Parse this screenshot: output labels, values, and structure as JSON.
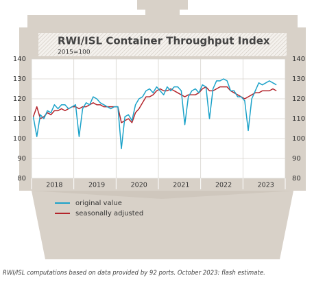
{
  "chart_data": {
    "type": "line",
    "title": "RWI/ISL Container Throughput Index",
    "subtitle": "2015=100",
    "categories": [
      null,
      null,
      null,
      null,
      null,
      null,
      "2018",
      null,
      null,
      null,
      null,
      null,
      null,
      null,
      null,
      null,
      null,
      null,
      "2019",
      null,
      null,
      null,
      null,
      null,
      null,
      null,
      null,
      null,
      null,
      null,
      "2020",
      null,
      null,
      null,
      null,
      null,
      null,
      null,
      null,
      null,
      null,
      null,
      "2021",
      null,
      null,
      null,
      null,
      null,
      null,
      null,
      null,
      null,
      null,
      null,
      "2022",
      null,
      null,
      null,
      null,
      null,
      null,
      null,
      null,
      null,
      null,
      null,
      "2023",
      null,
      null,
      null
    ],
    "series": [
      {
        "name": "original value",
        "color": "#1ba2c9",
        "values": [
          111,
          101,
          112,
          110,
          114,
          113,
          117,
          115,
          117,
          117,
          115,
          116,
          117,
          101,
          115,
          118,
          117,
          121,
          120,
          118,
          117,
          116,
          115,
          116,
          116,
          95,
          111,
          112,
          109,
          117,
          120,
          121,
          124,
          125,
          123,
          126,
          124,
          122,
          126,
          124,
          126,
          126,
          124,
          107,
          121,
          124,
          125,
          123,
          127,
          126,
          110,
          125,
          129,
          129,
          130,
          129,
          124,
          124,
          121,
          121,
          119,
          104,
          120,
          124,
          128,
          127,
          128,
          129,
          128,
          127
        ]
      },
      {
        "name": "seasonally adjusted",
        "color": "#b3242b",
        "values": [
          111,
          116,
          110,
          111,
          113,
          112,
          114,
          114,
          115,
          114,
          115,
          116,
          116,
          115,
          116,
          116,
          117,
          118,
          117,
          117,
          116,
          116,
          116,
          116,
          116,
          108,
          109,
          110,
          108,
          113,
          115,
          118,
          121,
          121,
          122,
          124,
          125,
          124,
          124,
          125,
          124,
          123,
          122,
          121,
          122,
          122,
          122,
          123,
          125,
          126,
          124,
          124,
          125,
          126,
          126,
          126,
          124,
          123,
          122,
          121,
          120,
          121,
          122,
          123,
          123,
          124,
          124,
          124,
          125,
          124
        ]
      }
    ],
    "ylim": [
      80,
      140
    ],
    "yticks": [
      80,
      90,
      100,
      110,
      120,
      130,
      140
    ],
    "y2lim": [
      80,
      140
    ],
    "y2ticks": [
      80,
      90,
      100,
      110,
      120,
      130,
      140
    ],
    "grid": true,
    "note": "RWI/ISL computations based on data provided by 92 ports. October 2023: flash estimate."
  }
}
